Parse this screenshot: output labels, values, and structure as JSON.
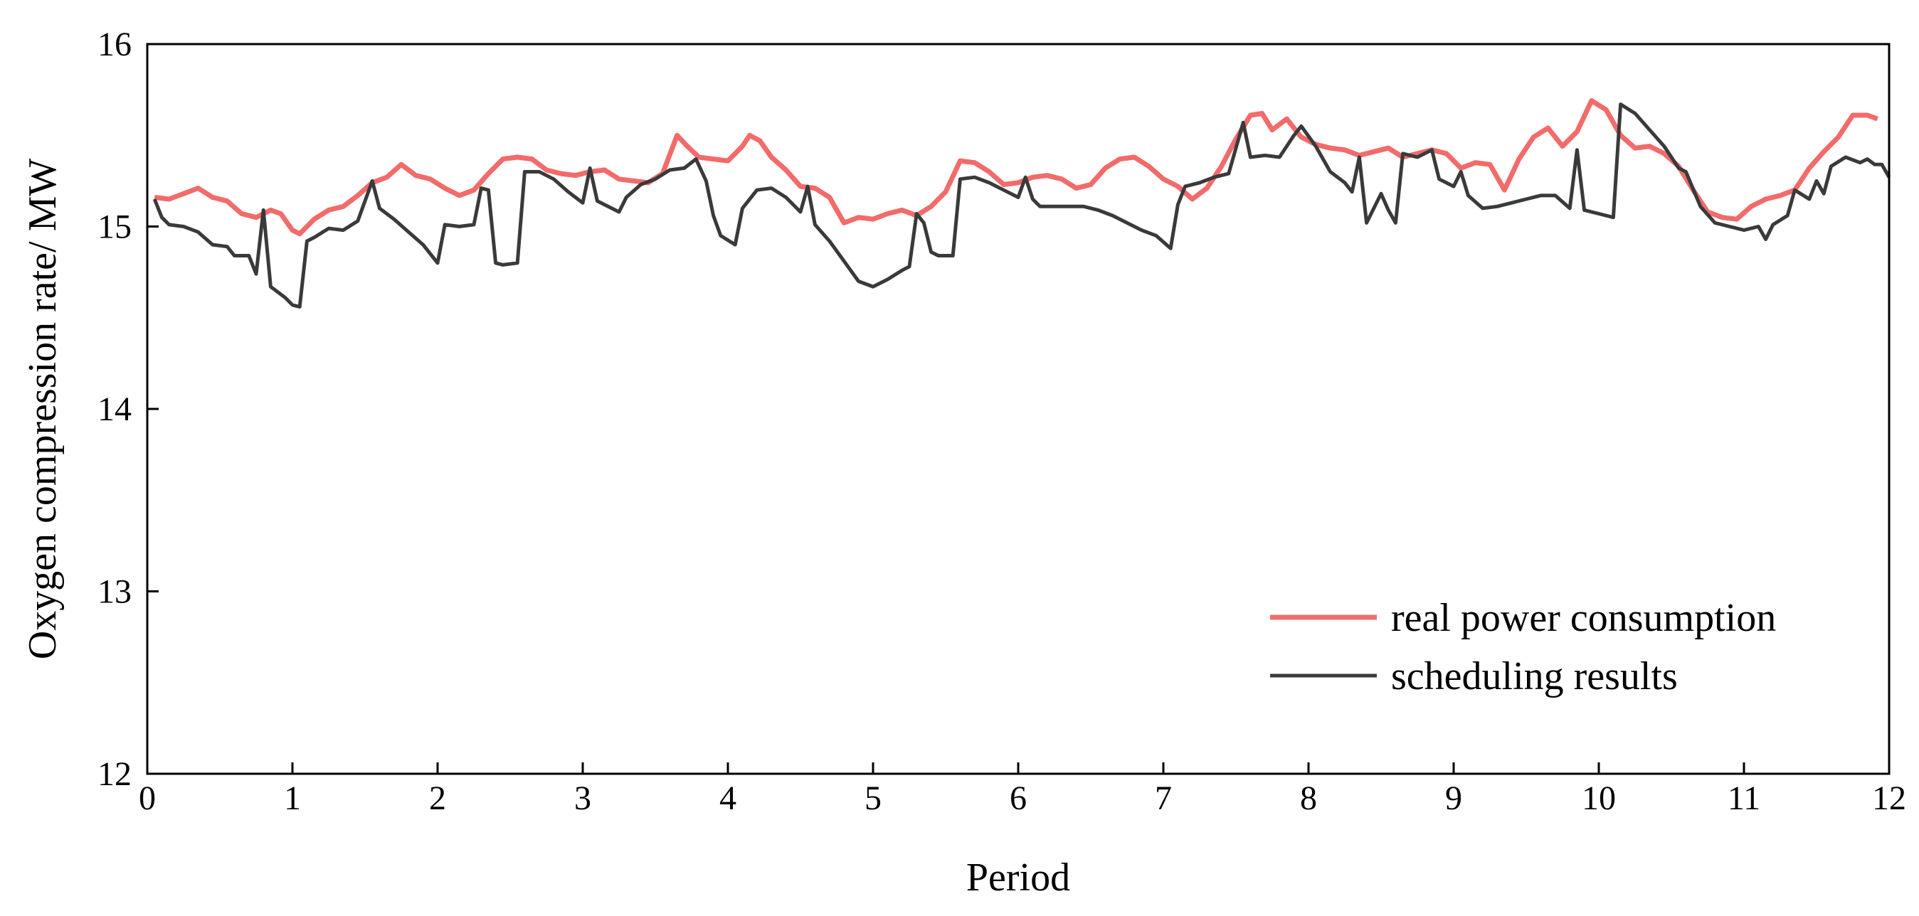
{
  "chart_data": {
    "type": "line",
    "title": "",
    "xlabel": "Period",
    "ylabel": "Oxygen compression rate/ MW",
    "xlim": [
      0,
      12
    ],
    "ylim": [
      12,
      16
    ],
    "xticks": [
      "0",
      "1",
      "2",
      "3",
      "4",
      "5",
      "6",
      "7",
      "8",
      "9",
      "10",
      "11",
      "12"
    ],
    "yticks": [
      "12",
      "13",
      "14",
      "15",
      "16"
    ],
    "grid": false,
    "legend_position": "bottom-right",
    "series": [
      {
        "name": "real power consumption",
        "color": "#f26b6b",
        "points": [
          [
            0.05,
            15.16
          ],
          [
            0.15,
            15.15
          ],
          [
            0.25,
            15.18
          ],
          [
            0.35,
            15.21
          ],
          [
            0.45,
            15.16
          ],
          [
            0.55,
            15.14
          ],
          [
            0.65,
            15.07
          ],
          [
            0.75,
            15.05
          ],
          [
            0.85,
            15.09
          ],
          [
            0.92,
            15.07
          ],
          [
            1.0,
            14.98
          ],
          [
            1.05,
            14.96
          ],
          [
            1.15,
            15.04
          ],
          [
            1.25,
            15.09
          ],
          [
            1.35,
            15.11
          ],
          [
            1.45,
            15.17
          ],
          [
            1.55,
            15.24
          ],
          [
            1.65,
            15.27
          ],
          [
            1.75,
            15.34
          ],
          [
            1.85,
            15.28
          ],
          [
            1.95,
            15.26
          ],
          [
            2.05,
            15.21
          ],
          [
            2.15,
            15.17
          ],
          [
            2.25,
            15.2
          ],
          [
            2.35,
            15.29
          ],
          [
            2.45,
            15.37
          ],
          [
            2.55,
            15.38
          ],
          [
            2.65,
            15.37
          ],
          [
            2.75,
            15.31
          ],
          [
            2.85,
            15.29
          ],
          [
            2.95,
            15.28
          ],
          [
            3.05,
            15.3
          ],
          [
            3.15,
            15.31
          ],
          [
            3.25,
            15.26
          ],
          [
            3.35,
            15.25
          ],
          [
            3.45,
            15.24
          ],
          [
            3.55,
            15.29
          ],
          [
            3.65,
            15.5
          ],
          [
            3.72,
            15.44
          ],
          [
            3.8,
            15.38
          ],
          [
            3.9,
            15.37
          ],
          [
            4.0,
            15.36
          ],
          [
            4.1,
            15.44
          ],
          [
            4.15,
            15.5
          ],
          [
            4.22,
            15.47
          ],
          [
            4.3,
            15.38
          ],
          [
            4.4,
            15.31
          ],
          [
            4.5,
            15.22
          ],
          [
            4.6,
            15.21
          ],
          [
            4.7,
            15.16
          ],
          [
            4.8,
            15.02
          ],
          [
            4.9,
            15.05
          ],
          [
            5.0,
            15.04
          ],
          [
            5.1,
            15.07
          ],
          [
            5.2,
            15.09
          ],
          [
            5.3,
            15.06
          ],
          [
            5.4,
            15.11
          ],
          [
            5.5,
            15.19
          ],
          [
            5.6,
            15.36
          ],
          [
            5.7,
            15.35
          ],
          [
            5.8,
            15.3
          ],
          [
            5.9,
            15.23
          ],
          [
            6.0,
            15.24
          ],
          [
            6.1,
            15.27
          ],
          [
            6.2,
            15.28
          ],
          [
            6.3,
            15.26
          ],
          [
            6.4,
            15.21
          ],
          [
            6.5,
            15.23
          ],
          [
            6.6,
            15.32
          ],
          [
            6.7,
            15.37
          ],
          [
            6.8,
            15.38
          ],
          [
            6.9,
            15.33
          ],
          [
            7.0,
            15.26
          ],
          [
            7.1,
            15.22
          ],
          [
            7.2,
            15.15
          ],
          [
            7.3,
            15.21
          ],
          [
            7.4,
            15.33
          ],
          [
            7.5,
            15.48
          ],
          [
            7.6,
            15.61
          ],
          [
            7.68,
            15.62
          ],
          [
            7.75,
            15.53
          ],
          [
            7.85,
            15.59
          ],
          [
            7.95,
            15.49
          ],
          [
            8.05,
            15.45
          ],
          [
            8.15,
            15.43
          ],
          [
            8.25,
            15.42
          ],
          [
            8.35,
            15.39
          ],
          [
            8.45,
            15.41
          ],
          [
            8.55,
            15.43
          ],
          [
            8.65,
            15.38
          ],
          [
            8.75,
            15.4
          ],
          [
            8.85,
            15.42
          ],
          [
            8.95,
            15.4
          ],
          [
            9.05,
            15.32
          ],
          [
            9.15,
            15.35
          ],
          [
            9.25,
            15.34
          ],
          [
            9.35,
            15.2
          ],
          [
            9.45,
            15.37
          ],
          [
            9.55,
            15.49
          ],
          [
            9.65,
            15.54
          ],
          [
            9.75,
            15.44
          ],
          [
            9.85,
            15.52
          ],
          [
            9.95,
            15.69
          ],
          [
            10.05,
            15.64
          ],
          [
            10.15,
            15.5
          ],
          [
            10.25,
            15.43
          ],
          [
            10.35,
            15.44
          ],
          [
            10.45,
            15.4
          ],
          [
            10.55,
            15.33
          ],
          [
            10.65,
            15.2
          ],
          [
            10.75,
            15.08
          ],
          [
            10.85,
            15.05
          ],
          [
            10.95,
            15.04
          ],
          [
            11.05,
            15.11
          ],
          [
            11.15,
            15.15
          ],
          [
            11.25,
            15.17
          ],
          [
            11.35,
            15.2
          ],
          [
            11.45,
            15.32
          ],
          [
            11.55,
            15.41
          ],
          [
            11.65,
            15.49
          ],
          [
            11.75,
            15.61
          ],
          [
            11.85,
            15.61
          ],
          [
            11.92,
            15.59
          ]
        ]
      },
      {
        "name": "scheduling results",
        "color": "#3a3a3a",
        "points": [
          [
            0.05,
            15.15
          ],
          [
            0.1,
            15.05
          ],
          [
            0.15,
            15.01
          ],
          [
            0.25,
            15.0
          ],
          [
            0.35,
            14.97
          ],
          [
            0.45,
            14.9
          ],
          [
            0.55,
            14.89
          ],
          [
            0.6,
            14.84
          ],
          [
            0.7,
            14.84
          ],
          [
            0.75,
            14.74
          ],
          [
            0.8,
            15.09
          ],
          [
            0.85,
            14.67
          ],
          [
            0.95,
            14.61
          ],
          [
            1.0,
            14.57
          ],
          [
            1.05,
            14.56
          ],
          [
            1.1,
            14.92
          ],
          [
            1.15,
            14.94
          ],
          [
            1.25,
            14.99
          ],
          [
            1.35,
            14.98
          ],
          [
            1.45,
            15.03
          ],
          [
            1.55,
            15.25
          ],
          [
            1.6,
            15.1
          ],
          [
            1.7,
            15.04
          ],
          [
            1.8,
            14.97
          ],
          [
            1.9,
            14.9
          ],
          [
            2.0,
            14.8
          ],
          [
            2.05,
            15.01
          ],
          [
            2.15,
            15.0
          ],
          [
            2.25,
            15.01
          ],
          [
            2.3,
            15.21
          ],
          [
            2.35,
            15.2
          ],
          [
            2.4,
            14.8
          ],
          [
            2.45,
            14.79
          ],
          [
            2.55,
            14.8
          ],
          [
            2.6,
            15.3
          ],
          [
            2.7,
            15.3
          ],
          [
            2.8,
            15.26
          ],
          [
            2.9,
            15.19
          ],
          [
            3.0,
            15.13
          ],
          [
            3.05,
            15.32
          ],
          [
            3.1,
            15.14
          ],
          [
            3.2,
            15.1
          ],
          [
            3.25,
            15.08
          ],
          [
            3.3,
            15.16
          ],
          [
            3.4,
            15.23
          ],
          [
            3.5,
            15.26
          ],
          [
            3.6,
            15.31
          ],
          [
            3.7,
            15.32
          ],
          [
            3.78,
            15.37
          ],
          [
            3.85,
            15.25
          ],
          [
            3.9,
            15.06
          ],
          [
            3.95,
            14.95
          ],
          [
            4.05,
            14.9
          ],
          [
            4.1,
            15.1
          ],
          [
            4.2,
            15.2
          ],
          [
            4.3,
            15.21
          ],
          [
            4.4,
            15.16
          ],
          [
            4.5,
            15.08
          ],
          [
            4.55,
            15.22
          ],
          [
            4.6,
            15.01
          ],
          [
            4.7,
            14.92
          ],
          [
            4.8,
            14.81
          ],
          [
            4.9,
            14.7
          ],
          [
            5.0,
            14.67
          ],
          [
            5.1,
            14.71
          ],
          [
            5.2,
            14.76
          ],
          [
            5.25,
            14.78
          ],
          [
            5.3,
            15.07
          ],
          [
            5.35,
            15.02
          ],
          [
            5.4,
            14.86
          ],
          [
            5.45,
            14.84
          ],
          [
            5.55,
            14.84
          ],
          [
            5.6,
            15.26
          ],
          [
            5.7,
            15.27
          ],
          [
            5.8,
            15.24
          ],
          [
            5.9,
            15.2
          ],
          [
            6.0,
            15.16
          ],
          [
            6.05,
            15.27
          ],
          [
            6.1,
            15.15
          ],
          [
            6.15,
            15.11
          ],
          [
            6.25,
            15.11
          ],
          [
            6.35,
            15.11
          ],
          [
            6.45,
            15.11
          ],
          [
            6.55,
            15.09
          ],
          [
            6.65,
            15.06
          ],
          [
            6.75,
            15.02
          ],
          [
            6.85,
            14.98
          ],
          [
            6.95,
            14.95
          ],
          [
            7.05,
            14.88
          ],
          [
            7.1,
            15.12
          ],
          [
            7.15,
            15.22
          ],
          [
            7.25,
            15.24
          ],
          [
            7.35,
            15.27
          ],
          [
            7.45,
            15.29
          ],
          [
            7.55,
            15.57
          ],
          [
            7.6,
            15.38
          ],
          [
            7.7,
            15.39
          ],
          [
            7.8,
            15.38
          ],
          [
            7.9,
            15.5
          ],
          [
            7.95,
            15.55
          ],
          [
            8.05,
            15.44
          ],
          [
            8.15,
            15.3
          ],
          [
            8.25,
            15.24
          ],
          [
            8.3,
            15.19
          ],
          [
            8.35,
            15.38
          ],
          [
            8.4,
            15.02
          ],
          [
            8.5,
            15.18
          ],
          [
            8.55,
            15.09
          ],
          [
            8.6,
            15.02
          ],
          [
            8.65,
            15.4
          ],
          [
            8.75,
            15.38
          ],
          [
            8.85,
            15.42
          ],
          [
            8.9,
            15.26
          ],
          [
            9.0,
            15.22
          ],
          [
            9.05,
            15.3
          ],
          [
            9.1,
            15.17
          ],
          [
            9.2,
            15.1
          ],
          [
            9.3,
            15.11
          ],
          [
            9.4,
            15.13
          ],
          [
            9.5,
            15.15
          ],
          [
            9.6,
            15.17
          ],
          [
            9.7,
            15.17
          ],
          [
            9.8,
            15.1
          ],
          [
            9.85,
            15.42
          ],
          [
            9.9,
            15.09
          ],
          [
            10.0,
            15.07
          ],
          [
            10.1,
            15.05
          ],
          [
            10.15,
            15.67
          ],
          [
            10.25,
            15.62
          ],
          [
            10.35,
            15.53
          ],
          [
            10.45,
            15.44
          ],
          [
            10.55,
            15.32
          ],
          [
            10.6,
            15.3
          ],
          [
            10.7,
            15.11
          ],
          [
            10.8,
            15.02
          ],
          [
            10.9,
            15.0
          ],
          [
            11.0,
            14.98
          ],
          [
            11.1,
            15.0
          ],
          [
            11.15,
            14.93
          ],
          [
            11.2,
            15.01
          ],
          [
            11.3,
            15.06
          ],
          [
            11.35,
            15.2
          ],
          [
            11.45,
            15.15
          ],
          [
            11.5,
            15.25
          ],
          [
            11.55,
            15.18
          ],
          [
            11.6,
            15.33
          ],
          [
            11.7,
            15.38
          ],
          [
            11.8,
            15.35
          ],
          [
            11.85,
            15.37
          ],
          [
            11.9,
            15.34
          ],
          [
            11.95,
            15.34
          ],
          [
            12.0,
            15.27
          ]
        ]
      }
    ]
  }
}
